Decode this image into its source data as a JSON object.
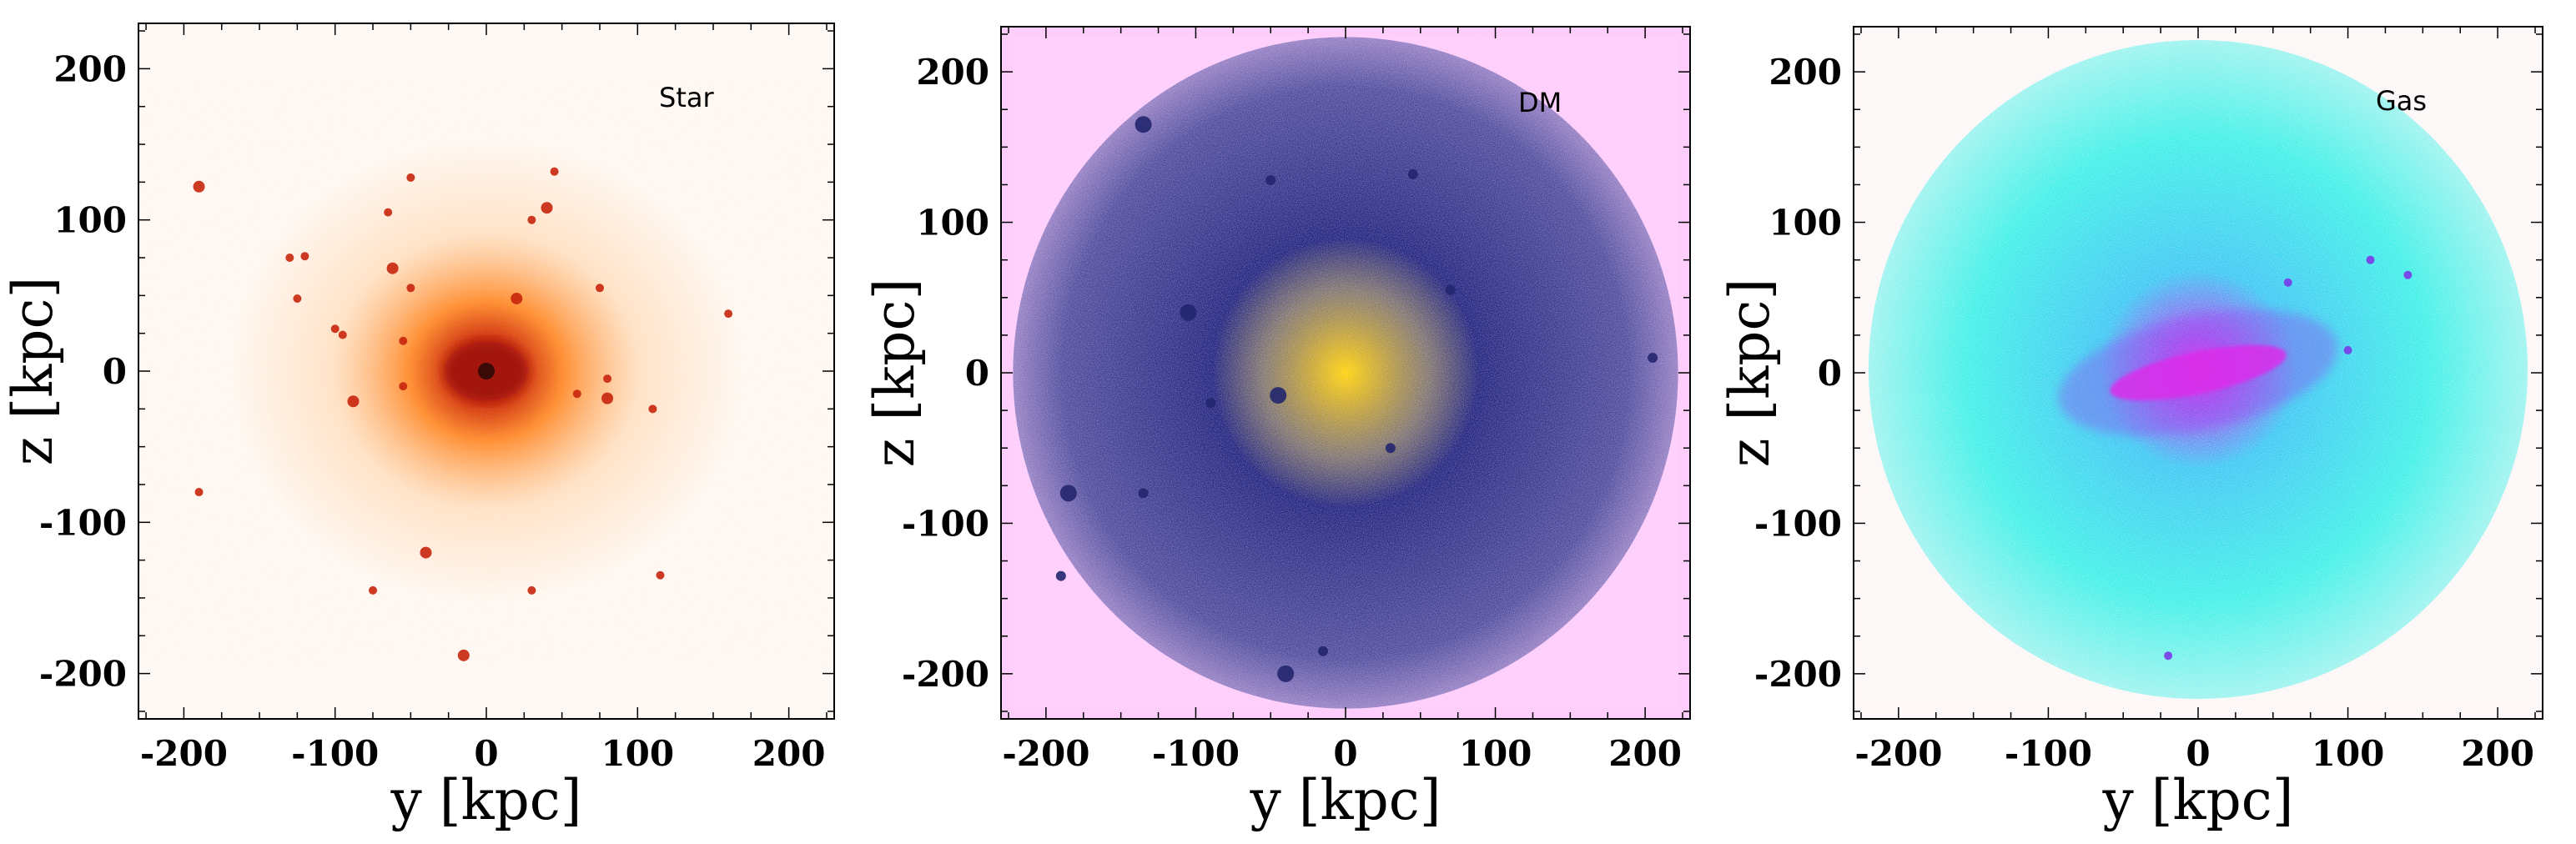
{
  "chart_data": [
    {
      "type": "heatmap",
      "panel_label": "Star",
      "xlabel": "y [kpc]",
      "ylabel": "z [kpc]",
      "xlim": [
        -230,
        230
      ],
      "ylim": [
        -230,
        230
      ],
      "xticks": [
        -200,
        -100,
        0,
        100,
        200
      ],
      "yticks": [
        -200,
        -100,
        0,
        100,
        200
      ],
      "colors": {
        "background": "#fff9f5",
        "outer": "#ffd3a8",
        "mid": "#ff8a2a",
        "core": "#c8250c",
        "center": "#3a0a06"
      },
      "substructures": [
        [
          -190,
          122
        ],
        [
          -50,
          128
        ],
        [
          45,
          132
        ],
        [
          -65,
          105
        ],
        [
          40,
          108
        ],
        [
          30,
          100
        ],
        [
          -130,
          75
        ],
        [
          -120,
          76
        ],
        [
          -62,
          68
        ],
        [
          -50,
          55
        ],
        [
          -125,
          48
        ],
        [
          75,
          55
        ],
        [
          20,
          48
        ],
        [
          -100,
          28
        ],
        [
          -95,
          24
        ],
        [
          -55,
          20
        ],
        [
          -88,
          -20
        ],
        [
          -55,
          -10
        ],
        [
          80,
          -5
        ],
        [
          60,
          -15
        ],
        [
          80,
          -18
        ],
        [
          110,
          -25
        ],
        [
          160,
          38
        ],
        [
          -190,
          -80
        ],
        [
          -40,
          -120
        ],
        [
          30,
          -145
        ],
        [
          115,
          -135
        ],
        [
          -75,
          -145
        ],
        [
          -15,
          -188
        ]
      ]
    },
    {
      "type": "heatmap",
      "panel_label": "DM",
      "xlabel": "y [kpc]",
      "ylabel": "z [kpc]",
      "xlim": [
        -230,
        230
      ],
      "ylim": [
        -230,
        230
      ],
      "xticks": [
        -200,
        -100,
        0,
        100,
        200
      ],
      "yticks": [
        -200,
        -100,
        0,
        100,
        200
      ],
      "colors": {
        "background": "#ffcdfc",
        "outer": "#4a4a9a",
        "mid": "#1a1f7a",
        "core": "#c9a829",
        "center": "#ffd400"
      },
      "substructures": [
        [
          -135,
          165
        ],
        [
          -50,
          128
        ],
        [
          45,
          132
        ],
        [
          -105,
          40
        ],
        [
          70,
          55
        ],
        [
          -90,
          -20
        ],
        [
          -45,
          -15
        ],
        [
          30,
          -50
        ],
        [
          -135,
          -80
        ],
        [
          -185,
          -80
        ],
        [
          -190,
          -135
        ],
        [
          -15,
          -185
        ],
        [
          -40,
          -200
        ],
        [
          205,
          10
        ]
      ]
    },
    {
      "type": "heatmap",
      "panel_label": "Gas",
      "xlabel": "y [kpc]",
      "ylabel": "z [kpc]",
      "xlim": [
        -230,
        230
      ],
      "ylim": [
        -230,
        230
      ],
      "xticks": [
        -200,
        -100,
        0,
        100,
        200
      ],
      "yticks": [
        -200,
        -100,
        0,
        100,
        200
      ],
      "colors": {
        "background": "#fdf7f7",
        "outer": "#40f0e8",
        "mid": "#3ec8f4",
        "core": "#9a40f0",
        "center": "#ff20e8"
      },
      "substructures": [
        [
          60,
          60
        ],
        [
          115,
          75
        ],
        [
          140,
          65
        ],
        [
          100,
          15
        ],
        [
          -20,
          -188
        ]
      ]
    }
  ]
}
